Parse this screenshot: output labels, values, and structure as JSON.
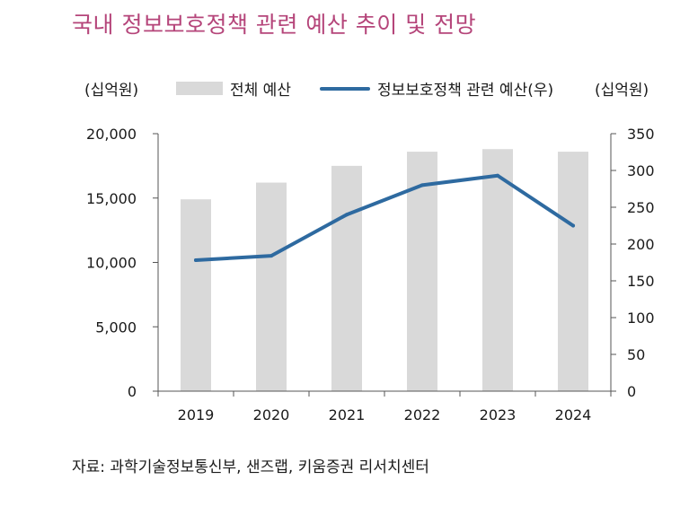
{
  "title": "국내 정보보호정책 관련 예산 추이 및 전망",
  "units": {
    "left": "(십억원)",
    "right": "(십억원)"
  },
  "legend": {
    "bar": "전체 예산",
    "line": "정보보호정책 관련 예산(우)"
  },
  "source": "자료: 과학기술정보통신부, 샌즈랩, 키움증권 리서치센터",
  "colors": {
    "bar": "#d9d9d9",
    "line": "#2e6aa0",
    "title": "#b5457a"
  },
  "chart_data": {
    "type": "bar+line",
    "categories": [
      "2019",
      "2020",
      "2021",
      "2022",
      "2023",
      "2024"
    ],
    "series": [
      {
        "name": "전체 예산",
        "type": "bar",
        "axis": "left",
        "values": [
          14900,
          16200,
          17500,
          18600,
          18800,
          18600
        ]
      },
      {
        "name": "정보보호정책 관련 예산(우)",
        "type": "line",
        "axis": "right",
        "values": [
          178,
          184,
          240,
          280,
          293,
          225
        ]
      }
    ],
    "y_left": {
      "min": 0,
      "max": 20000,
      "ticks": [
        0,
        5000,
        10000,
        15000,
        20000
      ],
      "tick_labels": [
        "0",
        "5,000",
        "10,000",
        "15,000",
        "20,000"
      ]
    },
    "y_right": {
      "min": 0,
      "max": 350,
      "ticks": [
        0,
        50,
        100,
        150,
        200,
        250,
        300,
        350
      ],
      "tick_labels": [
        "0",
        "50",
        "100",
        "150",
        "200",
        "250",
        "300",
        "350"
      ]
    },
    "grid": false
  }
}
